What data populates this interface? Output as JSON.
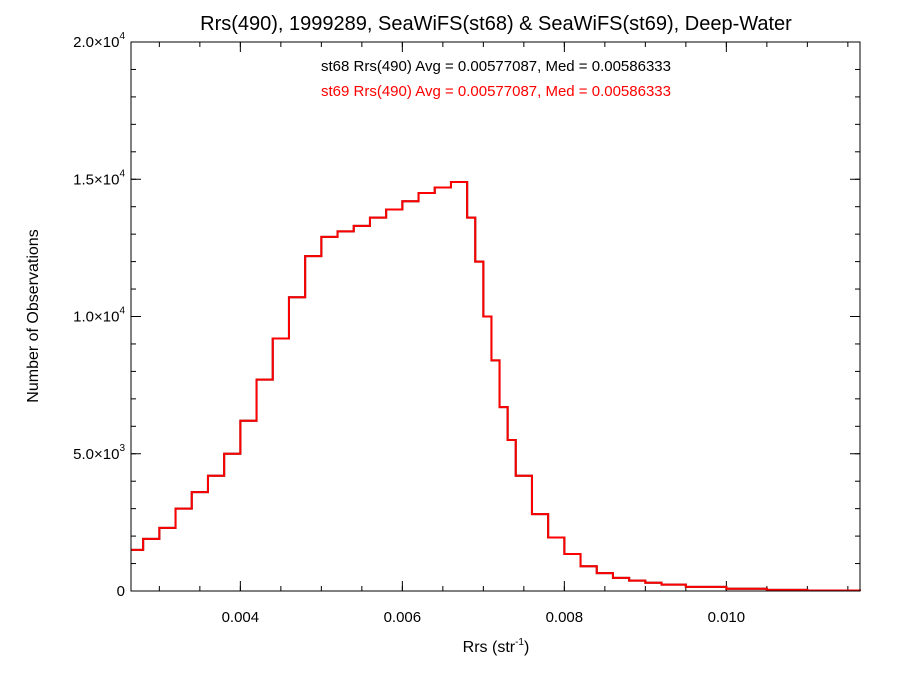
{
  "chart_data": {
    "type": "line",
    "title": "Rrs(490), 1999289, SeaWiFS(st68) & SeaWiFS(st69), Deep-Water",
    "xlabel_base": "Rrs (str",
    "xlabel_sup": "-1",
    "xlabel_close": ")",
    "ylabel": "Number of Observations",
    "xlim": [
      0.00265,
      0.01165
    ],
    "ylim": [
      0,
      20000
    ],
    "x_ticks": [
      {
        "value": 0.004,
        "label": "0.004"
      },
      {
        "value": 0.006,
        "label": "0.006"
      },
      {
        "value": 0.008,
        "label": "0.008"
      },
      {
        "value": 0.01,
        "label": "0.010"
      }
    ],
    "y_ticks": [
      {
        "value": 0,
        "base": "0",
        "exp": ""
      },
      {
        "value": 5000,
        "base": "5.0×10",
        "exp": "3"
      },
      {
        "value": 10000,
        "base": "1.0×10",
        "exp": "4"
      },
      {
        "value": 15000,
        "base": "1.5×10",
        "exp": "4"
      },
      {
        "value": 20000,
        "base": "2.0×10",
        "exp": "4"
      }
    ],
    "annotations": [
      {
        "text": "st68 Rrs(490) Avg = 0.00577087, Med = 0.00586333",
        "color": "#000000"
      },
      {
        "text": "st69 Rrs(490) Avg = 0.00577087, Med = 0.00586333",
        "color": "#ff0000"
      }
    ],
    "series": [
      {
        "name": "st68",
        "color": "#000000",
        "x": [
          0.00265,
          0.0028,
          0.003,
          0.0032,
          0.0034,
          0.0036,
          0.0038,
          0.004,
          0.0042,
          0.0044,
          0.0046,
          0.0048,
          0.005,
          0.0052,
          0.0054,
          0.0056,
          0.0058,
          0.006,
          0.0062,
          0.0064,
          0.0066,
          0.0068,
          0.0069,
          0.007,
          0.0071,
          0.0072,
          0.0073,
          0.0074,
          0.0076,
          0.0078,
          0.008,
          0.0082,
          0.0084,
          0.0086,
          0.0088,
          0.009,
          0.0092,
          0.0095,
          0.01,
          0.0105,
          0.011,
          0.01165
        ],
        "y": [
          1500,
          1900,
          2300,
          3000,
          3600,
          4200,
          5000,
          6200,
          7700,
          9200,
          10700,
          12200,
          12900,
          13100,
          13300,
          13600,
          13900,
          14200,
          14500,
          14700,
          14900,
          13600,
          12000,
          10000,
          8400,
          6700,
          5500,
          4200,
          2800,
          1950,
          1350,
          900,
          650,
          480,
          380,
          300,
          230,
          150,
          80,
          40,
          20,
          8
        ]
      },
      {
        "name": "st69",
        "color": "#ff0000",
        "x": [
          0.00265,
          0.0028,
          0.003,
          0.0032,
          0.0034,
          0.0036,
          0.0038,
          0.004,
          0.0042,
          0.0044,
          0.0046,
          0.0048,
          0.005,
          0.0052,
          0.0054,
          0.0056,
          0.0058,
          0.006,
          0.0062,
          0.0064,
          0.0066,
          0.0068,
          0.0069,
          0.007,
          0.0071,
          0.0072,
          0.0073,
          0.0074,
          0.0076,
          0.0078,
          0.008,
          0.0082,
          0.0084,
          0.0086,
          0.0088,
          0.009,
          0.0092,
          0.0095,
          0.01,
          0.0105,
          0.011,
          0.01165
        ],
        "y": [
          1500,
          1900,
          2300,
          3000,
          3600,
          4200,
          5000,
          6200,
          7700,
          9200,
          10700,
          12200,
          12900,
          13100,
          13300,
          13600,
          13900,
          14200,
          14500,
          14700,
          14900,
          13600,
          12000,
          10000,
          8400,
          6700,
          5500,
          4200,
          2800,
          1950,
          1350,
          900,
          650,
          480,
          380,
          300,
          230,
          150,
          80,
          40,
          20,
          8
        ]
      }
    ]
  }
}
